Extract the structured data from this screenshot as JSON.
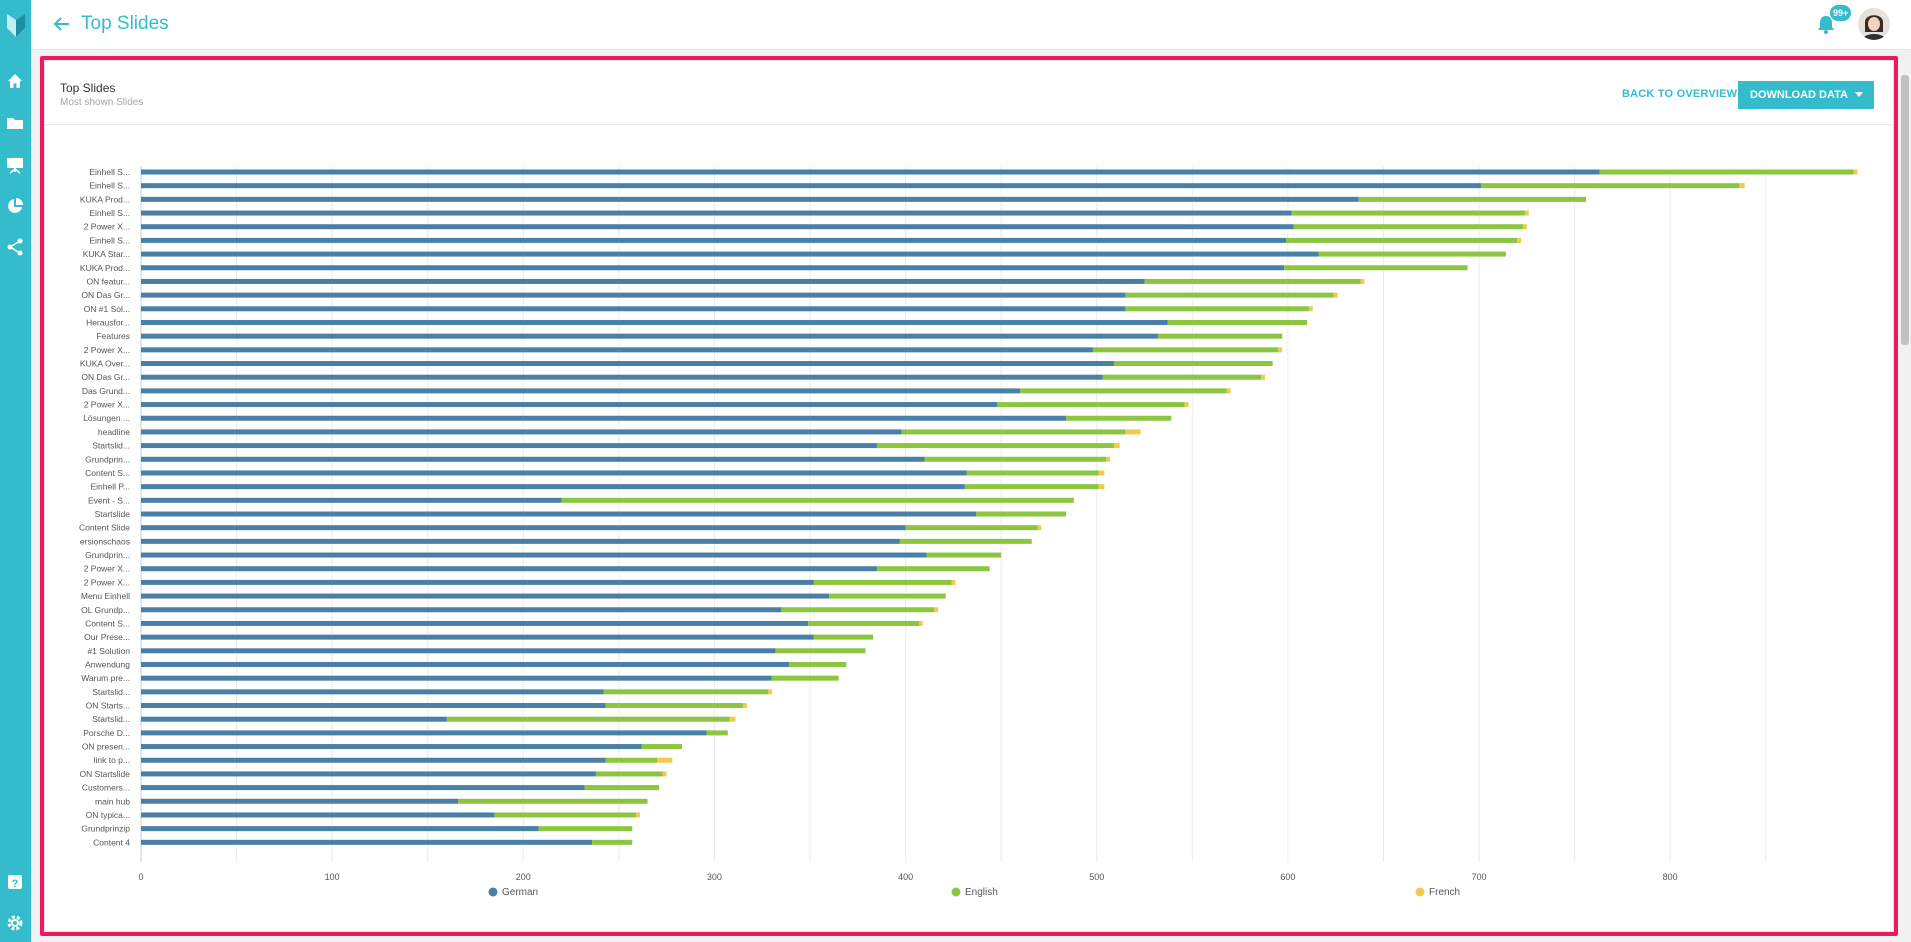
{
  "header": {
    "title": "Top Slides",
    "notification_count": "99+"
  },
  "sidebar": {
    "items": [
      "home-icon",
      "folder-icon",
      "presentation-icon",
      "pie-chart-icon",
      "share-icon",
      "help-icon",
      "settings-icon"
    ]
  },
  "card": {
    "title": "Top Slides",
    "subtitle": "Most shown Slides",
    "back_label": "BACK TO OVERVIEW",
    "download_label": "DOWNLOAD DATA"
  },
  "colors": {
    "accent": "#34bccd",
    "german": "#4a7fa8",
    "english": "#8cc540",
    "french": "#f2c94c",
    "highlight": "#ee1a5b"
  },
  "chart_data": {
    "type": "bar",
    "orientation": "horizontal",
    "stacked": true,
    "categories": [
      "Einhell S...",
      "Einhell S...",
      "KUKA Prod...",
      "Einhell S...",
      "2 Power X...",
      "Einhell S...",
      "KUKA Star...",
      "KUKA Prod...",
      "ON featur...",
      "ON Das Gr...",
      "ON #1 Sol...",
      "Herausfor...",
      "Features",
      "2 Power X...",
      "KUKA Over...",
      "ON Das Gr...",
      "Das Grund...",
      "2 Power X...",
      "Lösungen ...",
      "headline",
      "Startslid...",
      "Grundprin...",
      "Content S...",
      "Einhell P...",
      "Event - S...",
      "Startslide",
      "Content Slide",
      "ersionschaos",
      "Grundprin...",
      "2 Power X...",
      "2 Power X...",
      "Menu Einhell",
      "OL Grundp...",
      "Content S...",
      "Our Prese...",
      "#1 Solution",
      "Anwendung",
      "Warum pre...",
      "Startslid...",
      "ON Starts...",
      "Startslid...",
      "Porsche D...",
      "ON presen...",
      "link to p...",
      "ON Startslide",
      "Customers...",
      "main hub",
      "ON typica...",
      "Grundprinzip",
      "Content 4"
    ],
    "series": [
      {
        "name": "German",
        "values": [
          763,
          701,
          637,
          602,
          603,
          599,
          616,
          598,
          525,
          515,
          515,
          537,
          532,
          498,
          509,
          503,
          460,
          448,
          484,
          398,
          385,
          410,
          432,
          431,
          220,
          437,
          400,
          397,
          411,
          385,
          352,
          360,
          335,
          349,
          352,
          332,
          339,
          330,
          242,
          243,
          160,
          296,
          262,
          243,
          238,
          232,
          166,
          185,
          208,
          236
        ]
      },
      {
        "name": "English",
        "values": [
          133,
          135,
          119,
          122,
          120,
          121,
          98,
          96,
          113,
          109,
          96,
          73,
          65,
          97,
          83,
          83,
          108,
          98,
          55,
          117,
          124,
          95,
          69,
          70,
          268,
          47,
          69,
          69,
          39,
          59,
          72,
          61,
          80,
          58,
          31,
          47,
          30,
          35,
          86,
          72,
          148,
          11,
          21,
          27,
          35,
          39,
          99,
          74,
          49,
          21
        ]
      },
      {
        "name": "French",
        "values": [
          2,
          3,
          0,
          2,
          2,
          2,
          0,
          0,
          2,
          2,
          2,
          0,
          0,
          2,
          0,
          2,
          2,
          2,
          0,
          8,
          3,
          2,
          3,
          3,
          0,
          0,
          2,
          0,
          0,
          0,
          2,
          0,
          2,
          2,
          0,
          0,
          0,
          0,
          2,
          2,
          3,
          0,
          0,
          8,
          2,
          0,
          0,
          2,
          0,
          0
        ]
      }
    ],
    "xlim": [
      0,
      900
    ],
    "xticks": [
      0,
      100,
      200,
      300,
      400,
      500,
      600,
      700,
      800
    ],
    "grid": true,
    "legend_position": "bottom"
  }
}
